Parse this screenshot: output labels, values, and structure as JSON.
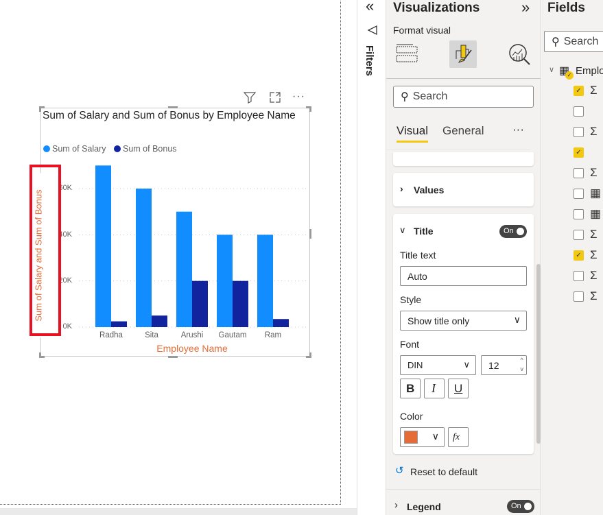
{
  "visual_header": {
    "filter_icon": "funnel-icon",
    "focus_icon": "focus-mode-icon",
    "more_icon": "more-options-icon"
  },
  "chart_data": {
    "type": "bar",
    "title": "Sum of Salary and Sum of Bonus by Employee Name",
    "xlabel": "Employee Name",
    "ylabel": "Sum of Salary and Sum of Bonus",
    "categories": [
      "Radha",
      "Sita",
      "Arushi",
      "Gautam",
      "Ram"
    ],
    "series": [
      {
        "name": "Sum of Salary",
        "color": "#118dff",
        "values": [
          70000,
          60000,
          50000,
          40000,
          40000
        ]
      },
      {
        "name": "Sum of Bonus",
        "color": "#12239e",
        "values": [
          2500,
          5000,
          20000,
          20000,
          3500
        ]
      }
    ],
    "yticks": [
      "0K",
      "20K",
      "40K",
      "60K"
    ],
    "ylim": [
      0,
      70000
    ],
    "grid": true,
    "legend": "top-left",
    "title_color": "#e66c37"
  },
  "filters": {
    "label": "Filters",
    "collapse_icon": "double-chevron-left-icon"
  },
  "viz": {
    "title": "Visualizations",
    "expand_icon": "double-chevron-right-icon",
    "subtitle": "Format visual",
    "search_placeholder": "Search",
    "tabs": [
      "Visual",
      "General"
    ],
    "more": "···",
    "values_label": "Values",
    "title_section": {
      "label": "Title",
      "toggle": "On",
      "title_text_label": "Title text",
      "title_text_value": "Auto",
      "style_label": "Style",
      "style_value": "Show title only",
      "font_label": "Font",
      "font_value": "DIN",
      "size_value": "12",
      "bold": "B",
      "italic": "I",
      "underline": "U",
      "color_label": "Color",
      "color_value": "#e66c37",
      "fx": "fx"
    },
    "reset": "Reset to default",
    "legend_label": "Legend",
    "legend_toggle": "On"
  },
  "fields": {
    "title": "Fields",
    "search_placeholder": "Search",
    "table": "Emplo",
    "rows": [
      {
        "checked": true,
        "icon": "Σ"
      },
      {
        "checked": false,
        "icon": ""
      },
      {
        "checked": false,
        "icon": "Σ"
      },
      {
        "checked": true,
        "icon": ""
      },
      {
        "checked": false,
        "icon": "Σ"
      },
      {
        "checked": false,
        "icon": "▦"
      },
      {
        "checked": false,
        "icon": "▦"
      },
      {
        "checked": false,
        "icon": "Σ"
      },
      {
        "checked": true,
        "icon": "Σ"
      },
      {
        "checked": false,
        "icon": "Σ"
      },
      {
        "checked": false,
        "icon": "Σ"
      }
    ]
  }
}
